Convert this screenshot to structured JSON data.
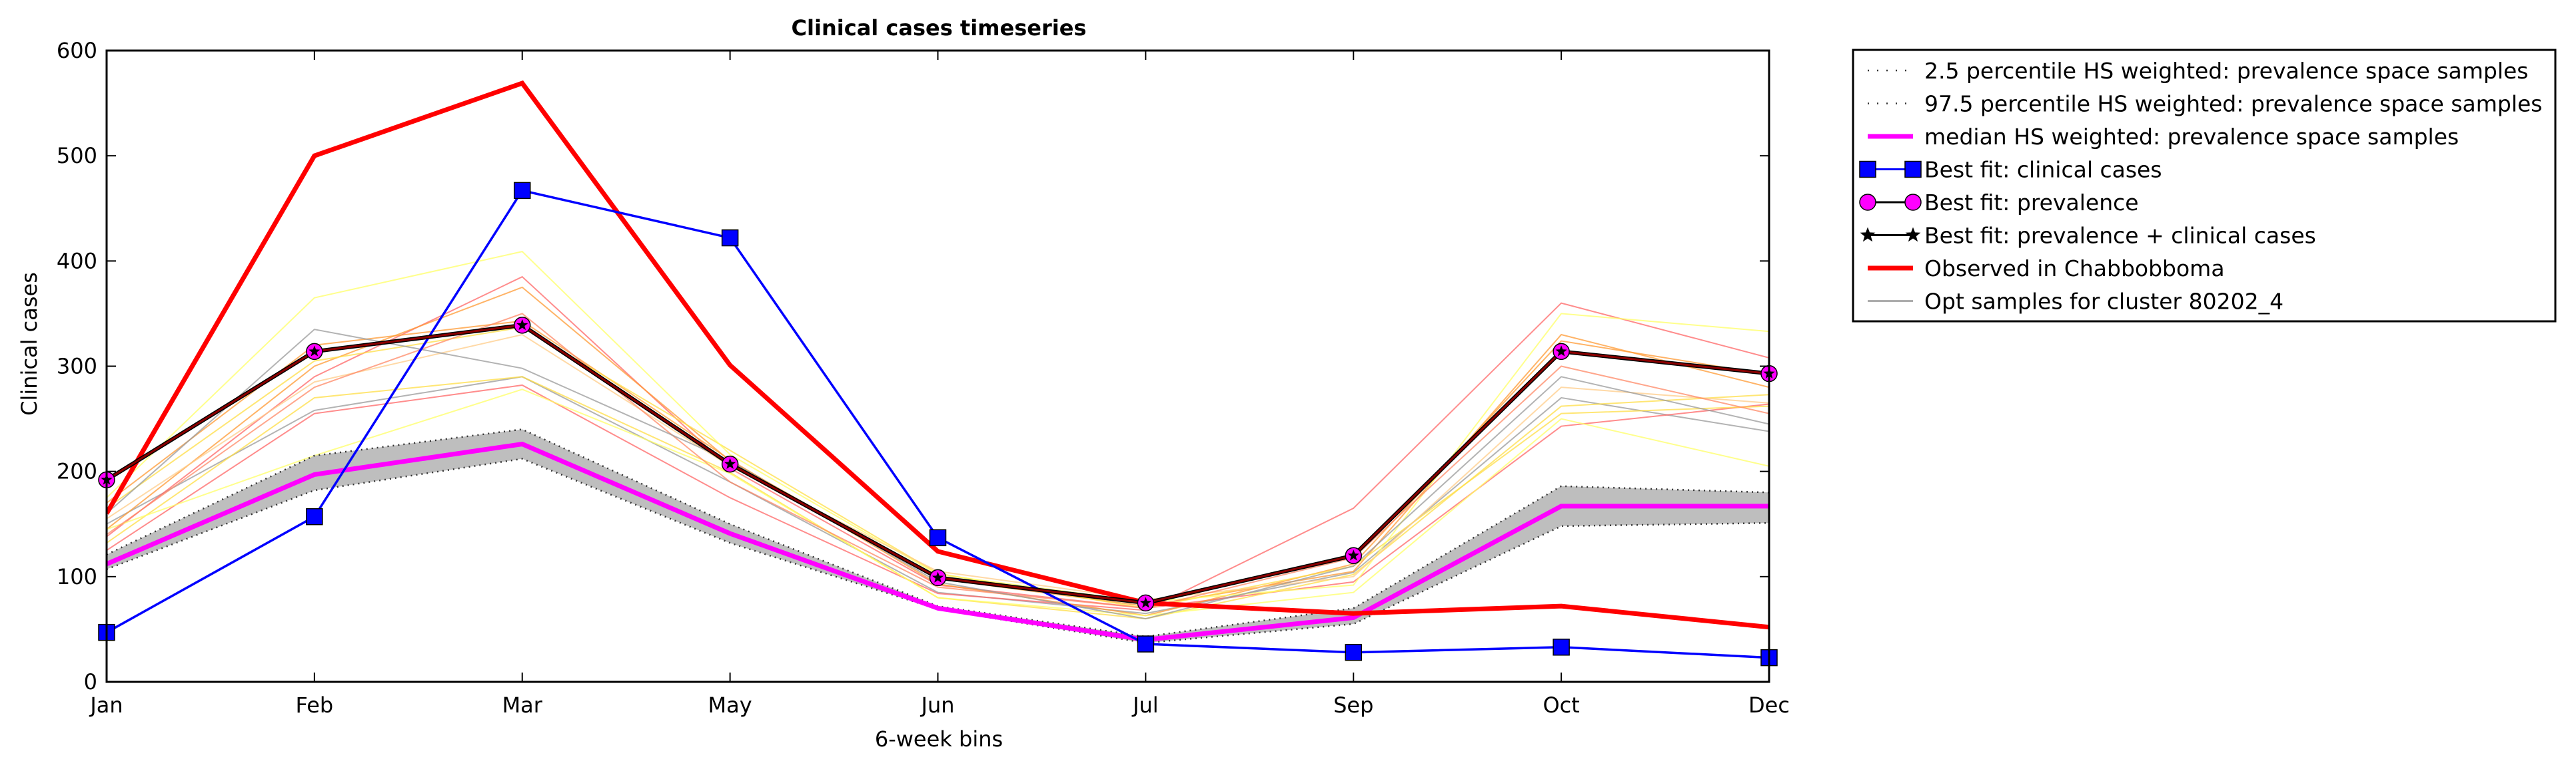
{
  "chart_data": {
    "type": "line",
    "title": "Clinical cases timeseries",
    "xlabel": "6-week bins",
    "ylabel": "Clinical cases",
    "categories": [
      "Jan",
      "Feb",
      "Mar",
      "May",
      "Jun",
      "Jul",
      "Sep",
      "Oct",
      "Dec"
    ],
    "ylim": [
      0,
      600
    ],
    "yticks": [
      0,
      100,
      200,
      300,
      400,
      500,
      600
    ],
    "grid": false,
    "legend_position": "outside-right",
    "band": {
      "lower_name": "2.5 percentile HS weighted: prevalence space samples",
      "upper_name": "97.5 percentile HS weighted: prevalence space samples",
      "fill_color": "#bebebe",
      "lower": [
        107,
        182,
        212,
        132,
        69,
        37,
        55,
        148,
        151
      ],
      "upper": [
        121,
        215,
        240,
        150,
        72,
        43,
        70,
        186,
        180
      ]
    },
    "series": [
      {
        "name": "median HS weighted: prevalence space samples",
        "role": "median",
        "color": "#ff00ff",
        "values": [
          112,
          197,
          226,
          141,
          70,
          40,
          61,
          167,
          167
        ]
      },
      {
        "name": "Best fit: clinical cases",
        "role": "best-clinical",
        "color": "#0000ff",
        "marker": "square",
        "values": [
          47,
          157,
          467,
          422,
          137,
          36,
          28,
          33,
          23
        ]
      },
      {
        "name": "Best fit: prevalence",
        "role": "best-prevalence",
        "color": "#ff00ff",
        "marker": "circle",
        "values": [
          192,
          314,
          339,
          207,
          99,
          75,
          120,
          314,
          293
        ]
      },
      {
        "name": "Best fit: prevalence + clinical cases",
        "role": "best-both",
        "color": "#000000",
        "marker": "star",
        "values": [
          192,
          314,
          339,
          207,
          99,
          75,
          120,
          314,
          293
        ]
      },
      {
        "name": "Observed in Chabbobboma",
        "role": "observed",
        "color": "#ff0000",
        "values": [
          160,
          500,
          569,
          301,
          124,
          75,
          65,
          72,
          52
        ]
      },
      {
        "name": "Opt samples for cluster 80202_4",
        "role": "opt",
        "color": "#999999",
        "values": [
          160,
          335,
          298,
          210,
          95,
          60,
          110,
          290,
          245
        ]
      }
    ],
    "sample_traces": [
      {
        "color": "#999999",
        "values": [
          150,
          258,
          290,
          190,
          85,
          65,
          104,
          270,
          238
        ]
      },
      {
        "color": "#ff6666",
        "values": [
          125,
          255,
          282,
          175,
          84,
          68,
          165,
          360,
          308
        ]
      },
      {
        "color": "#ff6666",
        "values": [
          138,
          290,
          385,
          203,
          92,
          70,
          95,
          243,
          264
        ]
      },
      {
        "color": "#ff9933",
        "values": [
          145,
          300,
          375,
          210,
          98,
          72,
          105,
          330,
          280
        ]
      },
      {
        "color": "#ff9933",
        "values": [
          170,
          320,
          343,
          211,
          93,
          63,
          112,
          324,
          292
        ]
      },
      {
        "color": "#ffdd44",
        "values": [
          165,
          305,
          337,
          220,
          103,
          70,
          110,
          255,
          262
        ]
      },
      {
        "color": "#ffdd44",
        "values": [
          132,
          270,
          290,
          199,
          80,
          60,
          102,
          262,
          273
        ]
      },
      {
        "color": "#ffff66",
        "values": [
          175,
          365,
          409,
          216,
          102,
          76,
          92,
          350,
          333
        ]
      },
      {
        "color": "#ffff66",
        "values": [
          145,
          215,
          278,
          198,
          80,
          63,
          85,
          250,
          205
        ]
      },
      {
        "color": "#ffcc88",
        "values": [
          155,
          285,
          330,
          205,
          105,
          78,
          100,
          280,
          265
        ]
      },
      {
        "color": "#ff8866",
        "values": [
          140,
          280,
          350,
          190,
          90,
          70,
          118,
          300,
          255
        ]
      },
      {
        "color": "#999999",
        "values": [
          160,
          335,
          298,
          210,
          95,
          60,
          110,
          290,
          245
        ]
      }
    ]
  }
}
